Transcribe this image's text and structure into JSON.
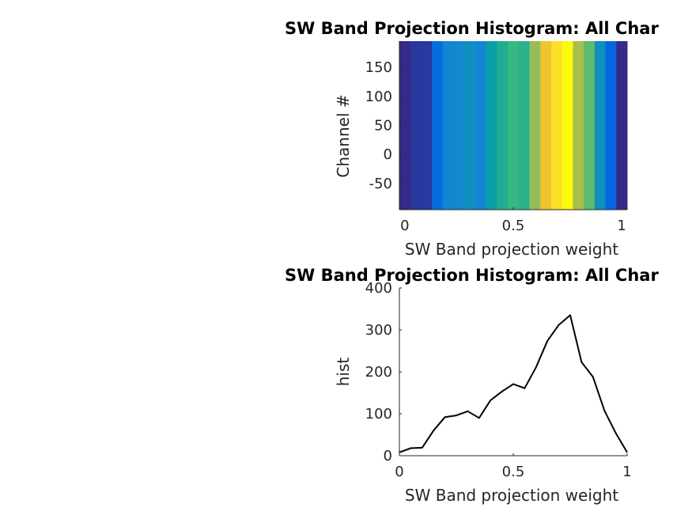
{
  "figure": {
    "background": "#ffffff"
  },
  "chart_data": [
    {
      "type": "heatmap",
      "title": "SW Band Projection Histogram: All Char",
      "xlabel": "SW Band projection weight",
      "ylabel": "Channel #",
      "xlim": [
        -0.025,
        1.025
      ],
      "ylim": [
        -95,
        195
      ],
      "xticks": [
        0,
        0.5,
        1
      ],
      "xtick_labels": [
        "0",
        "0.5",
        "1"
      ],
      "yticks": [
        -50,
        0,
        50,
        100,
        150
      ],
      "ytick_labels": [
        "-50",
        "0",
        "50",
        "100",
        "150"
      ],
      "colormap": "parula",
      "bin_width": 0.05,
      "x_centers": [
        0,
        0.05,
        0.1,
        0.15,
        0.2,
        0.25,
        0.3,
        0.35,
        0.4,
        0.45,
        0.5,
        0.55,
        0.6,
        0.65,
        0.7,
        0.75,
        0.8,
        0.85,
        0.9,
        0.95,
        1.0
      ],
      "values": [
        8,
        18,
        19,
        60,
        92,
        96,
        106,
        90,
        132,
        153,
        171,
        161,
        211,
        274,
        312,
        335,
        223,
        188,
        108,
        54,
        8
      ]
    },
    {
      "type": "line",
      "title": "SW Band Projection Histogram: All Char",
      "xlabel": "SW Band projection weight",
      "ylabel": "hist",
      "xlim": [
        0,
        1
      ],
      "ylim": [
        0,
        400
      ],
      "xticks": [
        0,
        0.5,
        1
      ],
      "xtick_labels": [
        "0",
        "0.5",
        "1"
      ],
      "yticks": [
        0,
        100,
        200,
        300,
        400
      ],
      "ytick_labels": [
        "0",
        "100",
        "200",
        "300",
        "400"
      ],
      "line_color": "#000000",
      "x": [
        0,
        0.05,
        0.1,
        0.15,
        0.2,
        0.25,
        0.3,
        0.35,
        0.4,
        0.45,
        0.5,
        0.55,
        0.6,
        0.65,
        0.7,
        0.75,
        0.8,
        0.85,
        0.9,
        0.95,
        1.0
      ],
      "y": [
        8,
        18,
        19,
        60,
        92,
        96,
        106,
        90,
        132,
        153,
        171,
        161,
        211,
        274,
        312,
        335,
        223,
        188,
        108,
        54,
        8
      ]
    }
  ]
}
